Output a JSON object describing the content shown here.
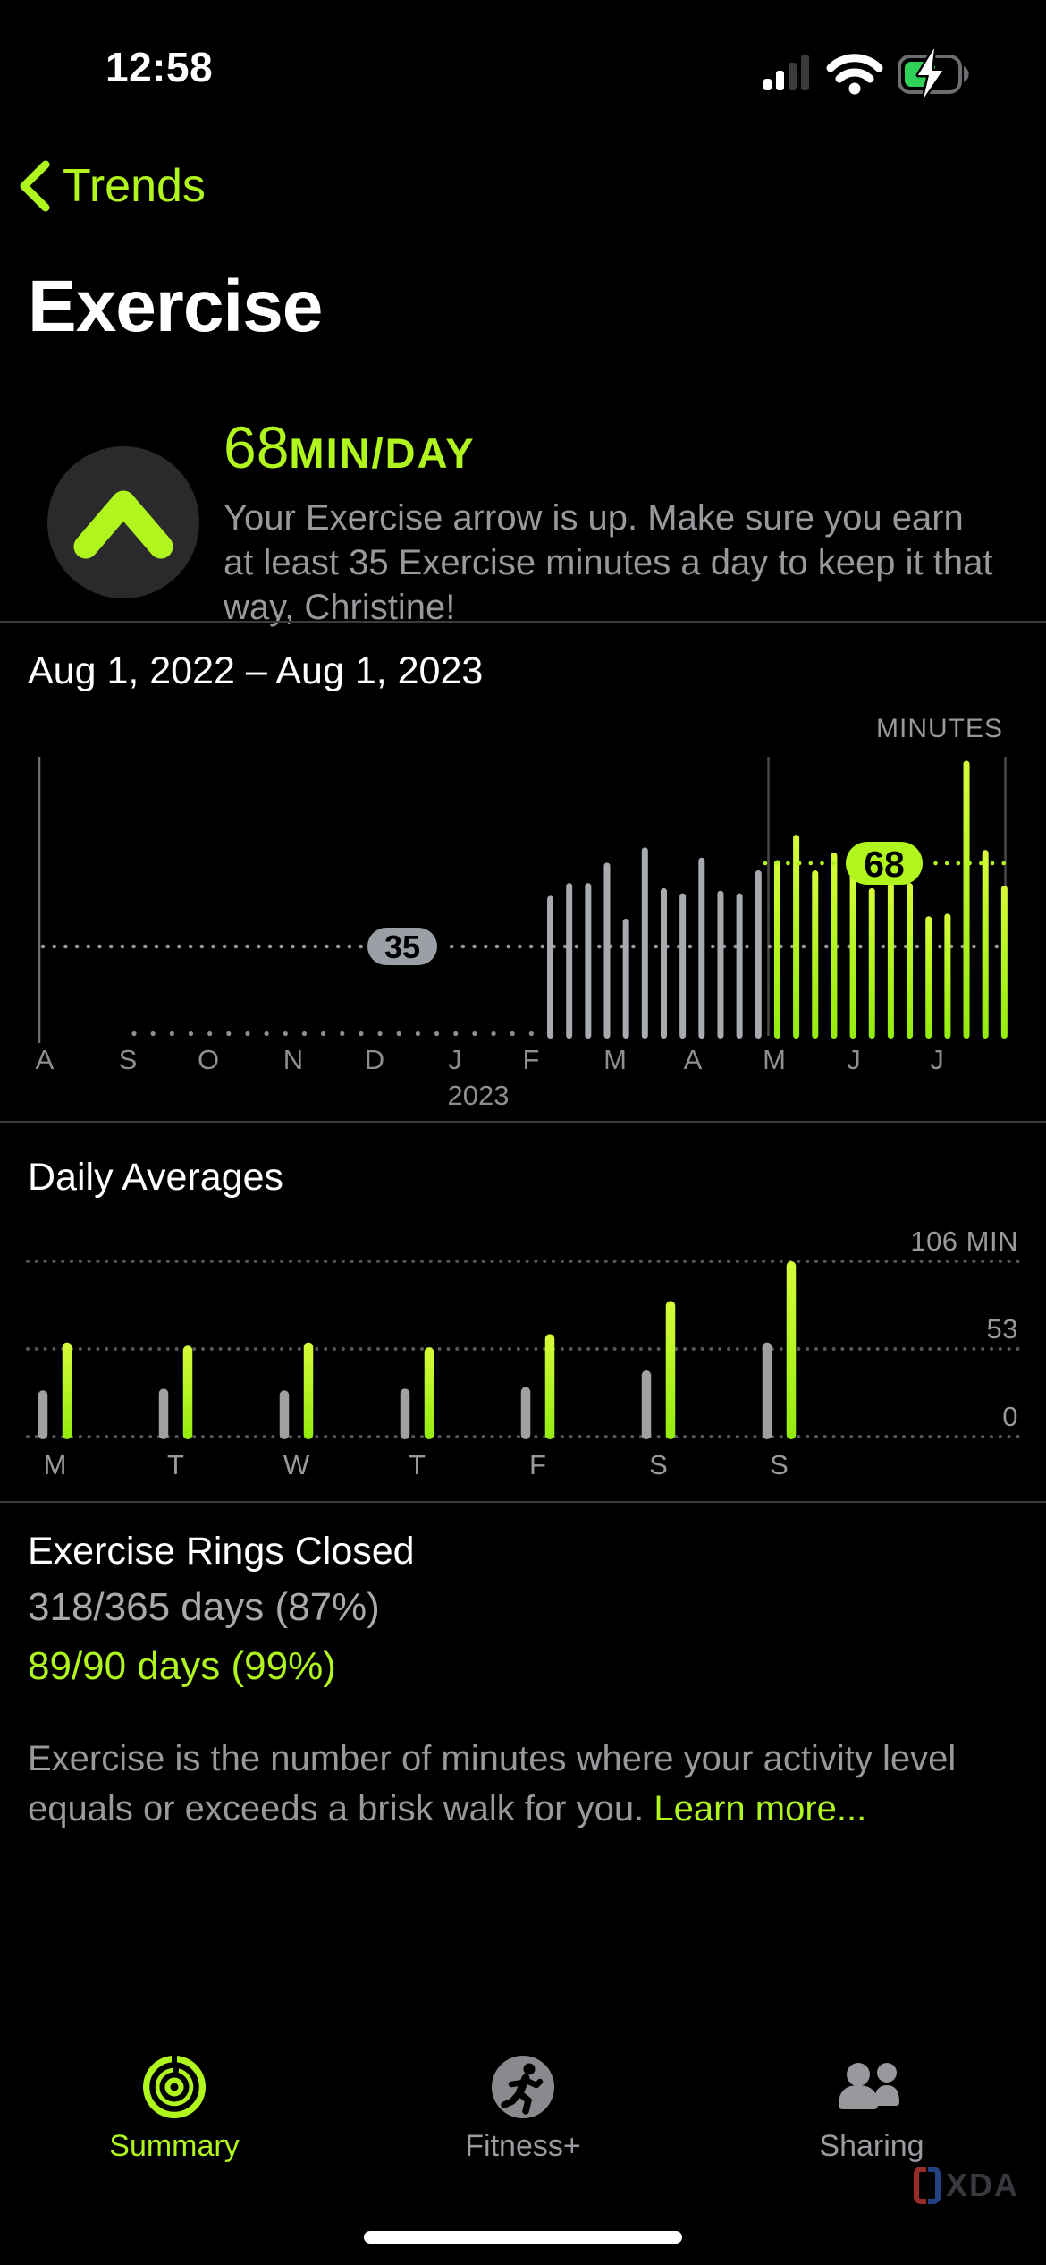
{
  "colors": {
    "accent": "#b0f51d",
    "bar_green_top": "#d6fb39",
    "bar_green_bottom": "#93ec0d",
    "bar_gray": "#a7aaae",
    "badge_gray": "#9aa0a6",
    "battery_green": "#30d158",
    "grid_dot": "#57575b",
    "axis_gray": "#8e8e93"
  },
  "status_bar": {
    "time": "12:58"
  },
  "nav": {
    "back_label": "Trends"
  },
  "page": {
    "title": "Exercise"
  },
  "trend_summary": {
    "value": "68",
    "unit": "MIN/DAY",
    "description": "Your Exercise arrow is up. Make sure you earn at least 35 Exercise minutes a day to keep it that way, Christine!"
  },
  "chart_data": [
    {
      "type": "bar",
      "title": "Aug 1, 2022 – Aug 1, 2023",
      "ylabel": "MINUTES",
      "x_axis_months": [
        "A",
        "S",
        "O",
        "N",
        "D",
        "J",
        "F",
        "M",
        "A",
        "M",
        "J",
        "J"
      ],
      "year_label": "2023",
      "no_data_weeks": 22,
      "average_badges": [
        {
          "value": 35,
          "style": "gray",
          "period": "full year"
        },
        {
          "value": 68,
          "style": "green",
          "period": "last 90 days"
        }
      ],
      "series": [
        {
          "name": "weekly average (earlier, gray)",
          "values": [
            55,
            60,
            60,
            68,
            46,
            74,
            58,
            56,
            70,
            57,
            56,
            65
          ]
        },
        {
          "name": "weekly average (last 90 days, green)",
          "values": [
            69,
            79,
            65,
            72,
            67,
            58,
            60,
            60,
            47,
            48,
            108,
            73,
            59
          ]
        }
      ]
    },
    {
      "type": "grouped-bar",
      "title": "Daily Averages",
      "categories": [
        "M",
        "T",
        "W",
        "T",
        "F",
        "S",
        "S"
      ],
      "y_ticks": [
        0,
        53,
        106
      ],
      "y_tick_labels": [
        "0",
        "53",
        "106 MIN"
      ],
      "ylim": [
        0,
        106
      ],
      "series": [
        {
          "name": "previous average (gray)",
          "values": [
            28,
            29,
            28,
            29,
            30,
            40,
            57
          ]
        },
        {
          "name": "last 90 days (green)",
          "values": [
            57,
            55,
            57,
            54,
            62,
            82,
            106
          ]
        }
      ]
    }
  ],
  "rings": {
    "title": "Exercise Rings Closed",
    "year_stat": "318/365 days (87%)",
    "recent_stat": "89/90 days (99%)"
  },
  "footnote": {
    "text": "Exercise is the number of minutes where your activity level equals or exceeds a brisk walk for you. ",
    "link": "Learn more..."
  },
  "tab_bar": {
    "items": [
      {
        "label": "Summary",
        "active": true
      },
      {
        "label": "Fitness+",
        "active": false
      },
      {
        "label": "Sharing",
        "active": false
      }
    ]
  },
  "watermark": {
    "text": "XDA"
  }
}
